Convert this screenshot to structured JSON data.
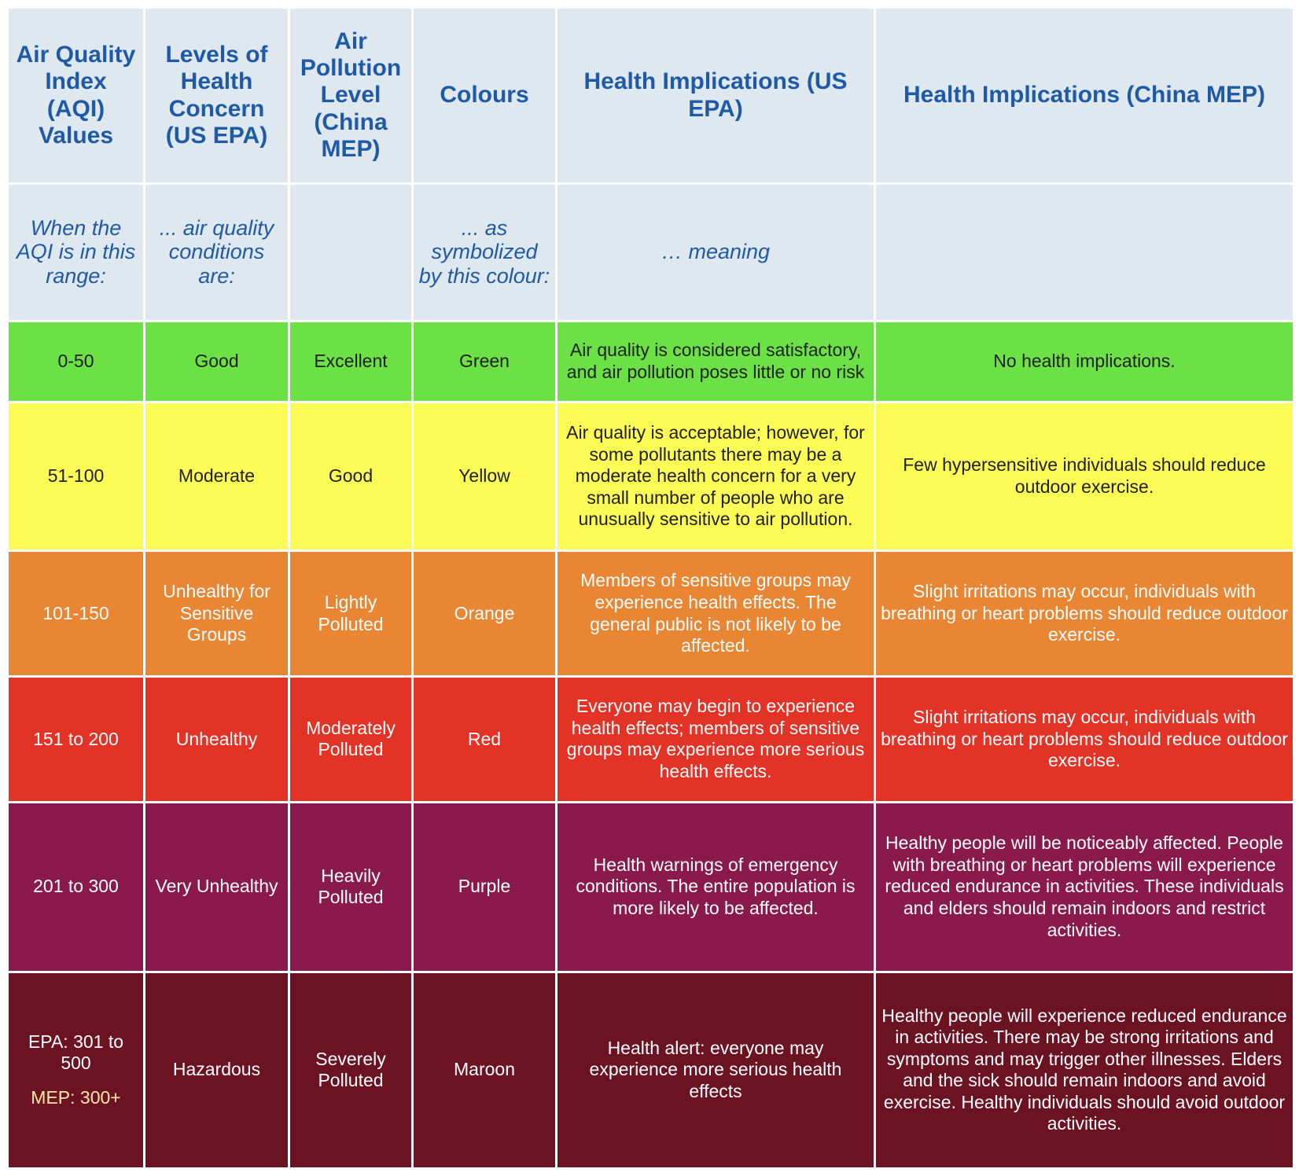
{
  "headers": {
    "aqi": "Air Quality Index (AQI) Values",
    "levels": "Levels of Health Concern (US EPA)",
    "pollution": "Air Pollution Level (China MEP)",
    "colours": "Colours",
    "health_epa": "Health Implications (US EPA)",
    "health_mep": "Health Implications (China MEP)"
  },
  "intro": {
    "aqi": "When the AQI is in this range:",
    "levels": "... air quality conditions are:",
    "pollution": "",
    "colours": "... as symbolized by this colour:",
    "health_epa": "… meaning",
    "health_mep": ""
  },
  "colors": {
    "header_bg": "#dfe7ef",
    "header_text": "#1f5aa6",
    "green": "#6be145",
    "yellow": "#fdfb55",
    "orange": "#e98634",
    "red": "#e33226",
    "purple": "#8a1a4b",
    "maroon": "#6b1223"
  },
  "rows": [
    {
      "aqi": "0-50",
      "concern": "Good",
      "pollution": "Excellent",
      "colour": "Green",
      "epa": "Air quality is considered satisfactory, and air pollution poses little or no risk",
      "mep": "No health implications."
    },
    {
      "aqi": "51-100",
      "concern": "Moderate",
      "pollution": "Good",
      "colour": "Yellow",
      "epa": "Air quality is acceptable; however, for some pollutants there may be a moderate health concern for a very small number of people who are unusually sensitive to air pollution.",
      "mep": "Few hypersensitive individuals should reduce outdoor exercise."
    },
    {
      "aqi": "101-150",
      "concern": "Unhealthy for Sensitive Groups",
      "pollution": "Lightly Polluted",
      "colour": "Orange",
      "epa": "Members of sensitive groups may experience health effects. The general public is not likely to be affected.",
      "mep": "Slight irritations may occur, individuals with breathing or heart problems should reduce outdoor exercise."
    },
    {
      "aqi": "151 to 200",
      "concern": "Unhealthy",
      "pollution": "Moderately Polluted",
      "colour": "Red",
      "epa": "Everyone may begin to experience health effects; members of sensitive groups may experience more serious health effects.",
      "mep": "Slight irritations may occur, individuals with breathing or heart problems should reduce outdoor exercise."
    },
    {
      "aqi": "201 to 300",
      "concern": "Very Unhealthy",
      "pollution": "Heavily Polluted",
      "colour": "Purple",
      "epa": "Health warnings of emergency conditions. The entire population is more likely to be affected.",
      "mep": "Healthy people will be noticeably affected. People with breathing or heart problems will experience reduced endurance in activities. These individuals and elders should remain indoors and restrict activities."
    },
    {
      "aqi_epa": "EPA: 301 to 500",
      "aqi_mep": "MEP: 300+",
      "concern": "Hazardous",
      "pollution": "Severely Polluted",
      "colour": "Maroon",
      "epa": "Health alert: everyone may experience more serious health effects",
      "mep": "Healthy people will experience reduced endurance in activities. There may be strong irritations and symptoms and may trigger other illnesses. Elders and the sick should remain indoors and avoid exercise. Healthy individuals should avoid outdoor activities."
    }
  ]
}
